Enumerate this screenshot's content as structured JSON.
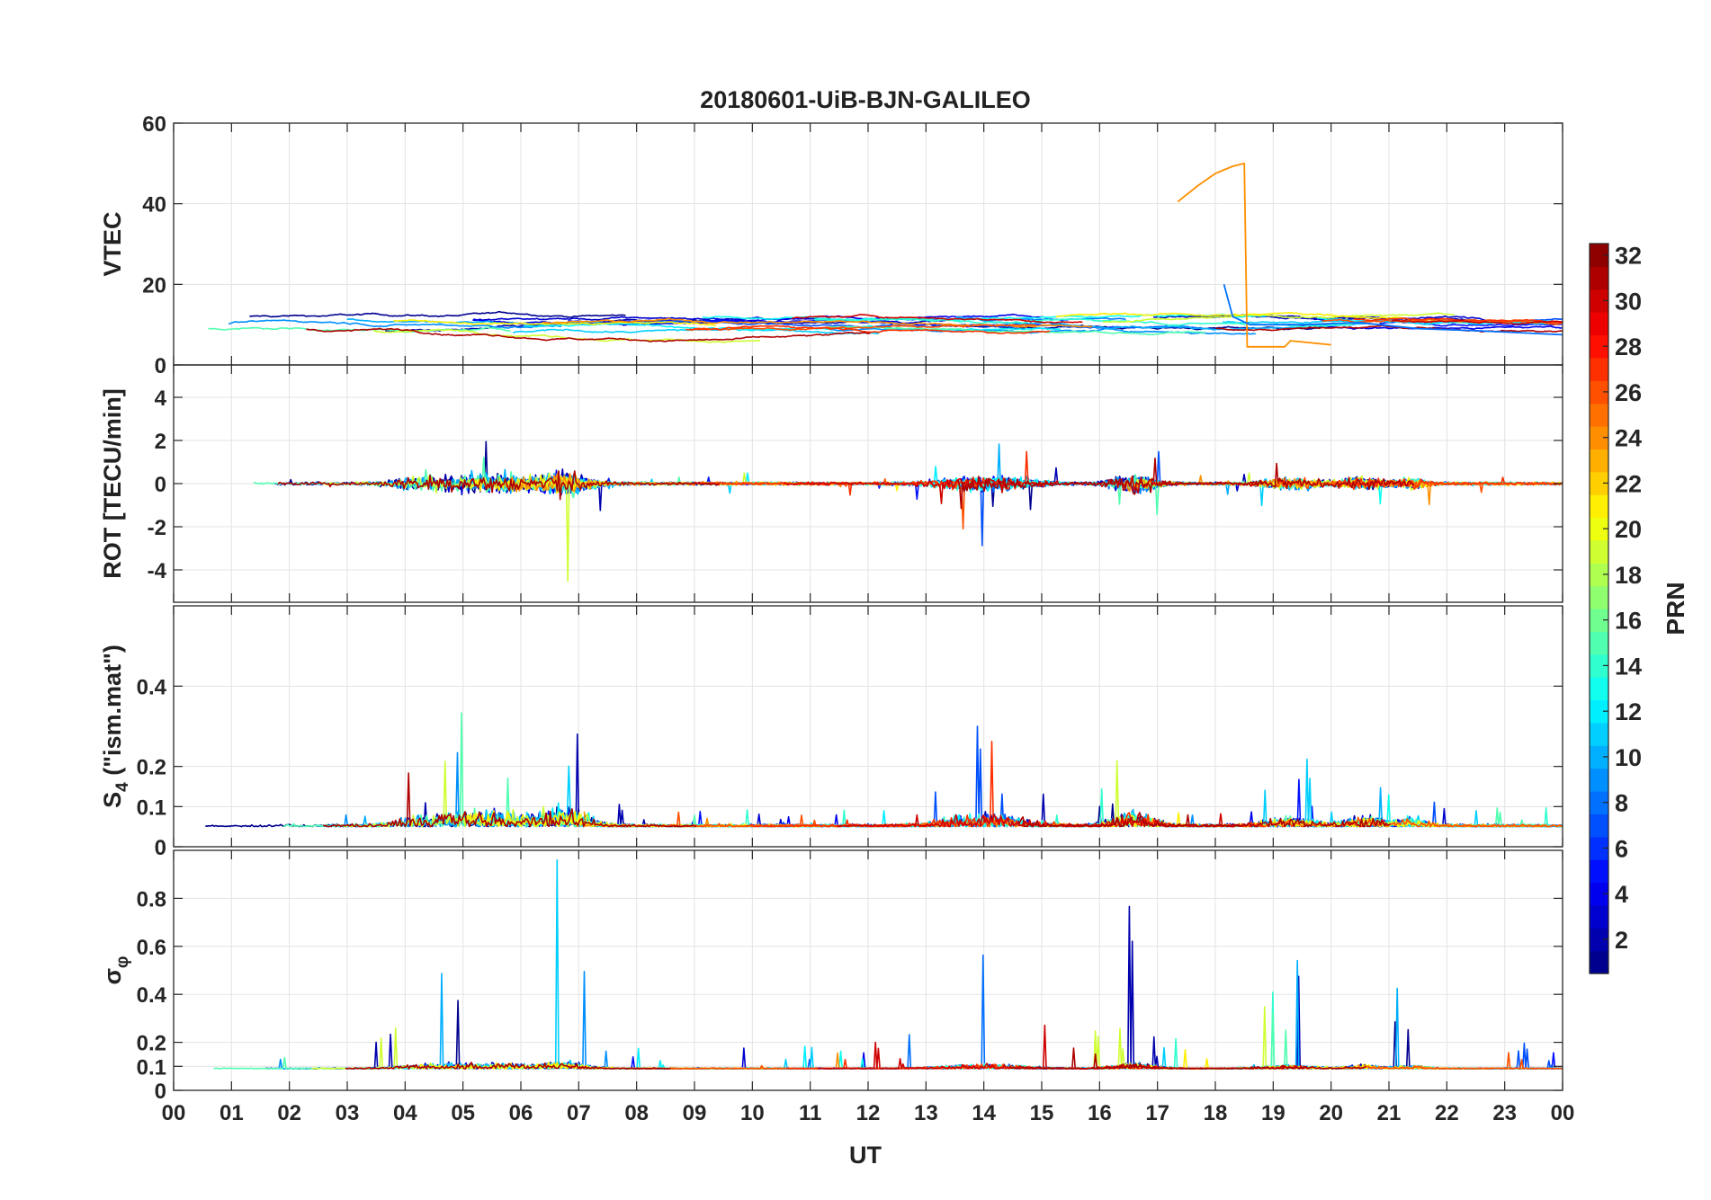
{
  "chart_data": {
    "type": "line",
    "title": "20180601-UiB-BJN-GALILEO",
    "xlabel": "UT",
    "x_range": [
      0,
      24
    ],
    "x_ticks": [
      0,
      1,
      2,
      3,
      4,
      5,
      6,
      7,
      8,
      9,
      10,
      11,
      12,
      13,
      14,
      15,
      16,
      17,
      18,
      19,
      20,
      21,
      22,
      23,
      24
    ],
    "x_tick_labels": [
      "00",
      "01",
      "02",
      "03",
      "04",
      "05",
      "06",
      "07",
      "08",
      "09",
      "10",
      "11",
      "12",
      "13",
      "14",
      "15",
      "16",
      "17",
      "18",
      "19",
      "20",
      "21",
      "22",
      "23",
      "00"
    ],
    "grid": true,
    "panels": [
      {
        "id": "vtec",
        "ylabel": "VTEC",
        "ylim": [
          0,
          60
        ],
        "y_ticks": [
          0,
          20,
          40,
          60
        ],
        "y_tick_labels": [
          "0",
          "20",
          "40",
          "60"
        ],
        "traces": [
          {
            "prn": 24,
            "points": [
              [
                17.35,
                40.5
              ],
              [
                17.7,
                44.5
              ],
              [
                18.0,
                47.5
              ],
              [
                18.3,
                49.3
              ],
              [
                18.5,
                50
              ],
              [
                18.55,
                4.5
              ],
              [
                19.2,
                4.5
              ],
              [
                19.3,
                6
              ],
              [
                20.0,
                5
              ]
            ]
          },
          {
            "prn": 8,
            "points": [
              [
                18.15,
                20
              ],
              [
                18.3,
                12
              ],
              [
                18.6,
                10
              ],
              [
                19.5,
                10
              ],
              [
                20.5,
                10.5
              ],
              [
                21.5,
                9
              ],
              [
                22.5,
                8.5
              ],
              [
                24.0,
                7.5
              ]
            ]
          }
        ]
      },
      {
        "id": "rot",
        "ylabel": "ROT [TECU/min]",
        "ylim": [
          -5.5,
          5.5
        ],
        "y_ticks": [
          -4,
          -2,
          0,
          2,
          4
        ],
        "y_tick_labels": [
          "-4",
          "-2",
          "0",
          "2",
          "4"
        ]
      },
      {
        "id": "s4",
        "ylabel_main": "S",
        "ylabel_sub": "4",
        "ylabel_rest": " (\"ism.mat\")",
        "ylim": [
          0,
          0.6
        ],
        "y_ticks": [
          0,
          0.1,
          0.2,
          0.4
        ],
        "y_tick_labels": [
          "0",
          "0.1",
          "0.2",
          "0.4"
        ]
      },
      {
        "id": "sigma",
        "ylabel_main": "σ",
        "ylabel_sub": "φ",
        "ylim": [
          0,
          1
        ],
        "y_ticks": [
          0,
          0.1,
          0.2,
          0.4,
          0.6,
          0.8
        ],
        "y_tick_labels": [
          "0",
          "0.1",
          "0.2",
          "0.4",
          "0.6",
          "0.8"
        ]
      }
    ],
    "prns": [
      1,
      2,
      3,
      4,
      5,
      7,
      8,
      9,
      10,
      11,
      12,
      13,
      14,
      15,
      19,
      21,
      24,
      26,
      27,
      30,
      31
    ],
    "colorbar": {
      "label": "PRN",
      "range": [
        1,
        32
      ],
      "ticks": [
        2,
        4,
        6,
        8,
        10,
        12,
        14,
        16,
        18,
        20,
        22,
        24,
        26,
        28,
        30,
        32
      ],
      "tick_labels": [
        "2",
        "4",
        "6",
        "8",
        "10",
        "12",
        "14",
        "16",
        "18",
        "20",
        "22",
        "24",
        "26",
        "28",
        "30",
        "32"
      ]
    }
  }
}
